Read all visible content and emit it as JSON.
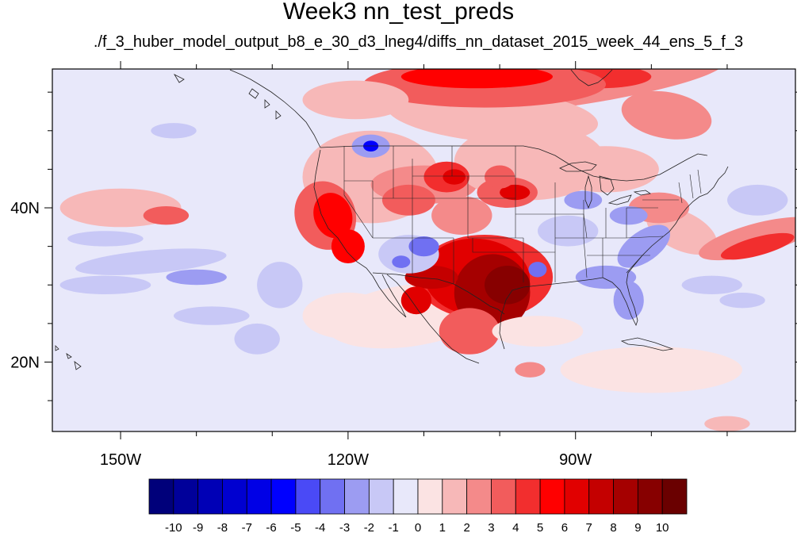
{
  "title": "Week3 nn_test_preds",
  "subtitle": "./f_3_huber_model_output_b8_e_30_d3_lneg4/diffs_nn_dataset_2015_week_44_ens_5_f_3",
  "axes": {
    "lon_ticks": [
      {
        "lon": -150,
        "label": "150W"
      },
      {
        "lon": -120,
        "label": "120W"
      },
      {
        "lon": -90,
        "label": "90W"
      }
    ],
    "lat_ticks": [
      {
        "lat": 40,
        "label": "40N"
      },
      {
        "lat": 20,
        "label": "20N"
      }
    ],
    "lon_range": [
      -159,
      -61
    ],
    "lat_range": [
      11,
      58
    ]
  },
  "colorbar": {
    "labels": [
      "-10",
      "-9",
      "-8",
      "-7",
      "-6",
      "-5",
      "-4",
      "-3",
      "-2",
      "-1",
      "0",
      "1",
      "2",
      "3",
      "4",
      "5",
      "6",
      "7",
      "8",
      "9",
      "10"
    ],
    "colors": [
      "#00007a",
      "#00009a",
      "#0000b6",
      "#0000d0",
      "#0000e6",
      "#0000ff",
      "#4a4af6",
      "#7070f2",
      "#9c9cf2",
      "#c8c8f6",
      "#e8e8fa",
      "#fbe3e3",
      "#f7b8b8",
      "#f48a8a",
      "#f25c5c",
      "#f22e2e",
      "#ff0000",
      "#e10000",
      "#c40000",
      "#a50000",
      "#870000",
      "#6a0000"
    ]
  },
  "chart_data": {
    "type": "heatmap",
    "title": "Week3 nn_test_preds",
    "subtitle": "./f_3_huber_model_output_b8_e_30_d3_lneg4/diffs_nn_dataset_2015_week_44_ens_5_f_3",
    "x_axis": "longitude",
    "y_axis": "latitude",
    "xlim": [
      -159,
      -61
    ],
    "ylim": [
      11,
      58
    ],
    "contour_levels": [
      -10,
      -9,
      -8,
      -7,
      -6,
      -5,
      -4,
      -3,
      -2,
      -1,
      0,
      1,
      2,
      3,
      4,
      5,
      6,
      7,
      8,
      9,
      10
    ],
    "background_value": -0.5,
    "regions": [
      {
        "lon": -112,
        "lat": 26,
        "rx": 11,
        "ry": 4,
        "value": 0.5,
        "rot": -8
      },
      {
        "lon": -117,
        "lat": 44,
        "rx": 9,
        "ry": 6,
        "value": 1.5,
        "rot": 0
      },
      {
        "lon": -110,
        "lat": 43,
        "rx": 7,
        "ry": 2.5,
        "value": 2.5,
        "rot": 0
      },
      {
        "lon": -96,
        "lat": 46,
        "rx": 10,
        "ry": 5,
        "value": 1.5,
        "rot": 0
      },
      {
        "lon": -92,
        "lat": 56,
        "rx": 22,
        "ry": 3,
        "value": 2.5,
        "rot": -8
      },
      {
        "lon": -87,
        "lat": 57,
        "rx": 7,
        "ry": 1.5,
        "value": 4.5,
        "rot": 0
      },
      {
        "lon": -101,
        "lat": 52,
        "rx": 14,
        "ry": 3.5,
        "value": 1.5,
        "rot": 5
      },
      {
        "lon": -102,
        "lat": 56,
        "rx": 16,
        "ry": 3,
        "value": 3.5,
        "rot": 0
      },
      {
        "lon": -103,
        "lat": 57,
        "rx": 10,
        "ry": 1.5,
        "value": 5.5,
        "rot": 0
      },
      {
        "lon": -119,
        "lat": 54,
        "rx": 7,
        "ry": 2.5,
        "value": 1.5,
        "rot": 0
      },
      {
        "lon": -78,
        "lat": 52,
        "rx": 6,
        "ry": 3,
        "value": 2.5,
        "rot": 10
      },
      {
        "lon": -123,
        "lat": 39,
        "rx": 4,
        "ry": 4.5,
        "value": 3.5,
        "rot": -20
      },
      {
        "lon": -122,
        "lat": 39,
        "rx": 2.5,
        "ry": 3,
        "value": 5,
        "rot": -20
      },
      {
        "lon": -120,
        "lat": 35,
        "rx": 2.2,
        "ry": 2.2,
        "value": 5,
        "rot": 0
      },
      {
        "lon": -112,
        "lat": 41,
        "rx": 3.5,
        "ry": 2,
        "value": 3.5,
        "rot": 0
      },
      {
        "lon": -107,
        "lat": 44,
        "rx": 3,
        "ry": 2,
        "value": 4,
        "rot": 0
      },
      {
        "lon": -106,
        "lat": 44,
        "rx": 1.5,
        "ry": 1,
        "value": 6,
        "rot": 0
      },
      {
        "lon": -99,
        "lat": 42,
        "rx": 4,
        "ry": 2,
        "value": 3.5,
        "rot": 0
      },
      {
        "lon": -98,
        "lat": 42,
        "rx": 2,
        "ry": 1,
        "value": 6,
        "rot": 0
      },
      {
        "lon": -100,
        "lat": 44,
        "rx": 2,
        "ry": 1.5,
        "value": 3.5,
        "rot": 0
      },
      {
        "lon": -105,
        "lat": 39,
        "rx": 4,
        "ry": 2.5,
        "value": 2.5,
        "rot": 0
      },
      {
        "lon": -102,
        "lat": 31,
        "rx": 9,
        "ry": 5.5,
        "value": 4,
        "rot": 0
      },
      {
        "lon": -103,
        "lat": 31,
        "rx": 7,
        "ry": 5,
        "value": 6,
        "rot": 5
      },
      {
        "lon": -101,
        "lat": 29,
        "rx": 5,
        "ry": 5,
        "value": 8,
        "rot": 10
      },
      {
        "lon": -99,
        "lat": 30,
        "rx": 3,
        "ry": 2.5,
        "value": 9.5,
        "rot": 0
      },
      {
        "lon": -109,
        "lat": 31,
        "rx": 3.5,
        "ry": 1.5,
        "value": 7,
        "rot": 0
      },
      {
        "lon": -111,
        "lat": 28,
        "rx": 2,
        "ry": 1.8,
        "value": 6,
        "rot": 0
      },
      {
        "lon": -104,
        "lat": 24,
        "rx": 4,
        "ry": 3,
        "value": 3,
        "rot": 0
      },
      {
        "lon": -76,
        "lat": 37,
        "rx": 5,
        "ry": 2.5,
        "value": 1.5,
        "rot": 25
      },
      {
        "lon": -79,
        "lat": 40,
        "rx": 4,
        "ry": 2,
        "value": 2.5,
        "rot": 0
      },
      {
        "lon": -86,
        "lat": 45,
        "rx": 7,
        "ry": 3,
        "value": 1.5,
        "rot": 0
      },
      {
        "lon": -66,
        "lat": 36,
        "rx": 8,
        "ry": 2,
        "value": 2.5,
        "rot": -15
      },
      {
        "lon": -66,
        "lat": 35,
        "rx": 5,
        "ry": 1.2,
        "value": 4,
        "rot": -15
      },
      {
        "lon": -150,
        "lat": 40,
        "rx": 8,
        "ry": 2.5,
        "value": 1.5,
        "rot": 0
      },
      {
        "lon": -144,
        "lat": 39,
        "rx": 3,
        "ry": 1.2,
        "value": 3,
        "rot": 0
      },
      {
        "lon": -120,
        "lat": 26,
        "rx": 6,
        "ry": 3,
        "value": 0.5,
        "rot": 0
      },
      {
        "lon": -112,
        "lat": 34,
        "rx": 4,
        "ry": 2.5,
        "value": -2,
        "rot": 0
      },
      {
        "lon": -110,
        "lat": 35,
        "rx": 2,
        "ry": 1.3,
        "value": -4,
        "rot": 0
      },
      {
        "lon": -113,
        "lat": 33,
        "rx": 1.2,
        "ry": 0.8,
        "value": -4,
        "rot": 0
      },
      {
        "lon": -117,
        "lat": 48,
        "rx": 2.5,
        "ry": 1.5,
        "value": -3,
        "rot": 0
      },
      {
        "lon": -117,
        "lat": 48,
        "rx": 1,
        "ry": 0.7,
        "value": -6,
        "rot": 0
      },
      {
        "lon": -91,
        "lat": 37,
        "rx": 4,
        "ry": 2,
        "value": -1.5,
        "rot": 0
      },
      {
        "lon": -81,
        "lat": 35,
        "rx": 4,
        "ry": 2,
        "value": -3,
        "rot": -35
      },
      {
        "lon": -86,
        "lat": 31,
        "rx": 4,
        "ry": 1.5,
        "value": -2.5,
        "rot": 0
      },
      {
        "lon": -83,
        "lat": 28,
        "rx": 2,
        "ry": 2.5,
        "value": -2.5,
        "rot": 0
      },
      {
        "lon": -89,
        "lat": 41,
        "rx": 2.5,
        "ry": 1.2,
        "value": -3,
        "rot": 0
      },
      {
        "lon": -83,
        "lat": 39,
        "rx": 2.5,
        "ry": 1.2,
        "value": -2.5,
        "rot": 0
      },
      {
        "lon": -95,
        "lat": 32,
        "rx": 1.2,
        "ry": 1,
        "value": -4,
        "rot": 0
      },
      {
        "lon": -146,
        "lat": 33,
        "rx": 10,
        "ry": 1.5,
        "value": -2,
        "rot": -5
      },
      {
        "lon": -152,
        "lat": 30,
        "rx": 6,
        "ry": 1.2,
        "value": -2,
        "rot": 0
      },
      {
        "lon": -140,
        "lat": 31,
        "rx": 4,
        "ry": 1,
        "value": -3,
        "rot": 0
      },
      {
        "lon": -152,
        "lat": 36,
        "rx": 5,
        "ry": 1,
        "value": -2,
        "rot": 0
      },
      {
        "lon": -138,
        "lat": 26,
        "rx": 5,
        "ry": 1.2,
        "value": -2,
        "rot": 0
      },
      {
        "lon": -129,
        "lat": 30,
        "rx": 3,
        "ry": 3,
        "value": -2,
        "rot": 0
      },
      {
        "lon": -132,
        "lat": 23,
        "rx": 3,
        "ry": 2,
        "value": -2,
        "rot": 0
      },
      {
        "lon": -143,
        "lat": 50,
        "rx": 3,
        "ry": 1,
        "value": -2,
        "rot": 0
      },
      {
        "lon": -72,
        "lat": 30,
        "rx": 4,
        "ry": 1.2,
        "value": -2,
        "rot": 0
      },
      {
        "lon": -66,
        "lat": 41,
        "rx": 4,
        "ry": 2,
        "value": -1.5,
        "rot": 0
      },
      {
        "lon": -68,
        "lat": 28,
        "rx": 3,
        "ry": 1,
        "value": -2,
        "rot": 0
      },
      {
        "lon": -95,
        "lat": 24,
        "rx": 6,
        "ry": 2,
        "value": 0.5,
        "rot": 0
      },
      {
        "lon": -80,
        "lat": 19,
        "rx": 12,
        "ry": 3,
        "value": 0.5,
        "rot": 0
      },
      {
        "lon": -70,
        "lat": 12,
        "rx": 3,
        "ry": 1,
        "value": 1.5,
        "rot": 0
      },
      {
        "lon": -96,
        "lat": 19,
        "rx": 2,
        "ry": 1,
        "value": 2,
        "rot": 0
      }
    ]
  }
}
